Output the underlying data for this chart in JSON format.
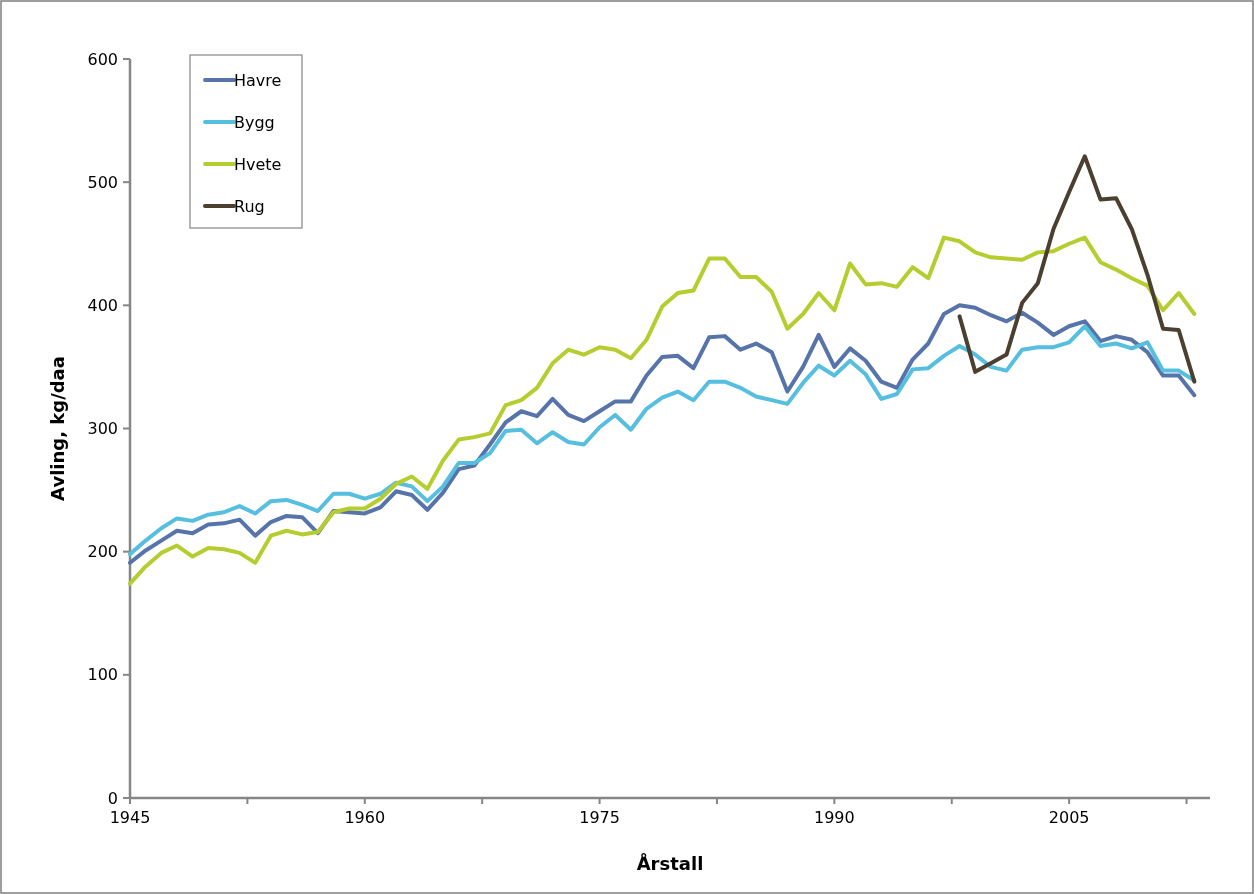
{
  "chart_data": {
    "type": "line",
    "xlabel": "Årstall",
    "ylabel": "Avling, kg/daa",
    "x": [
      1945,
      1946,
      1947,
      1948,
      1949,
      1950,
      1951,
      1952,
      1953,
      1954,
      1955,
      1956,
      1957,
      1958,
      1959,
      1960,
      1961,
      1962,
      1963,
      1964,
      1965,
      1966,
      1967,
      1968,
      1969,
      1970,
      1971,
      1972,
      1973,
      1974,
      1975,
      1976,
      1977,
      1978,
      1979,
      1980,
      1981,
      1982,
      1983,
      1984,
      1985,
      1986,
      1987,
      1988,
      1989,
      1990,
      1991,
      1992,
      1993,
      1994,
      1995,
      1996,
      1997,
      1998,
      1999,
      2000,
      2001,
      2002,
      2003,
      2004,
      2005,
      2006,
      2007,
      2008,
      2009,
      2010,
      2011,
      2012,
      2013
    ],
    "series": [
      {
        "name": "Havre",
        "color": "#5674a9",
        "values": [
          191,
          201,
          209,
          217,
          215,
          222,
          223,
          226,
          213,
          224,
          229,
          228,
          215,
          233,
          232,
          231,
          236,
          249,
          246,
          234,
          248,
          267,
          270,
          287,
          305,
          314,
          310,
          324,
          311,
          306,
          314,
          322,
          322,
          343,
          358,
          359,
          349,
          374,
          375,
          364,
          369,
          362,
          330,
          350,
          376,
          350,
          365,
          355,
          338,
          333,
          356,
          369,
          393,
          400,
          398,
          392,
          387,
          394,
          386,
          376,
          383,
          387,
          371,
          375,
          372,
          362,
          343,
          343,
          327
        ]
      },
      {
        "name": "Bygg",
        "color": "#56bfe0",
        "values": [
          198,
          209,
          219,
          227,
          225,
          230,
          232,
          237,
          231,
          241,
          242,
          238,
          233,
          247,
          247,
          243,
          247,
          256,
          253,
          241,
          253,
          272,
          272,
          280,
          298,
          299,
          288,
          297,
          289,
          287,
          301,
          311,
          299,
          316,
          325,
          330,
          323,
          338,
          338,
          333,
          326,
          323,
          320,
          337,
          351,
          343,
          355,
          344,
          324,
          328,
          348,
          349,
          359,
          367,
          360,
          350,
          347,
          364,
          366,
          366,
          370,
          383,
          367,
          369,
          365,
          370,
          347,
          347,
          339
        ]
      },
      {
        "name": "Hvete",
        "color": "#b6cd30",
        "values": [
          174,
          188,
          199,
          205,
          196,
          203,
          202,
          199,
          191,
          213,
          217,
          214,
          216,
          232,
          235,
          235,
          243,
          255,
          261,
          251,
          274,
          291,
          293,
          296,
          319,
          323,
          333,
          353,
          364,
          360,
          366,
          364,
          357,
          372,
          399,
          410,
          412,
          438,
          438,
          423,
          423,
          411,
          381,
          393,
          410,
          396,
          434,
          417,
          418,
          415,
          431,
          422,
          455,
          452,
          443,
          439,
          438,
          437,
          443,
          444,
          450,
          455,
          435,
          429,
          422,
          416,
          396,
          410,
          393
        ]
      },
      {
        "name": "Rug",
        "color": "#4b4030",
        "values": [
          null,
          null,
          null,
          null,
          null,
          null,
          null,
          null,
          null,
          null,
          null,
          null,
          null,
          null,
          null,
          null,
          null,
          null,
          null,
          null,
          null,
          null,
          null,
          null,
          null,
          null,
          null,
          null,
          null,
          null,
          null,
          null,
          null,
          null,
          null,
          null,
          null,
          null,
          null,
          null,
          null,
          null,
          null,
          null,
          null,
          null,
          null,
          null,
          null,
          null,
          null,
          null,
          null,
          391,
          346,
          353,
          360,
          402,
          418,
          462,
          492,
          521,
          486,
          487,
          462,
          425,
          381,
          380,
          338
        ]
      }
    ],
    "xlim": [
      1945,
      2014
    ],
    "xticks": [
      1945,
      {
        "value": 1952.5,
        "label": null
      },
      1960,
      {
        "value": 1967.5,
        "label": null
      },
      1975,
      {
        "value": 1982.5,
        "label": null
      },
      1990,
      {
        "value": 1997.5,
        "label": null
      },
      2005,
      {
        "value": 2012.5,
        "label": null
      }
    ],
    "ylim": [
      0,
      600
    ],
    "yticks": [
      0,
      100,
      200,
      300,
      400,
      500,
      600
    ],
    "legend": "top left",
    "marker": "none",
    "line_style": "solid"
  }
}
